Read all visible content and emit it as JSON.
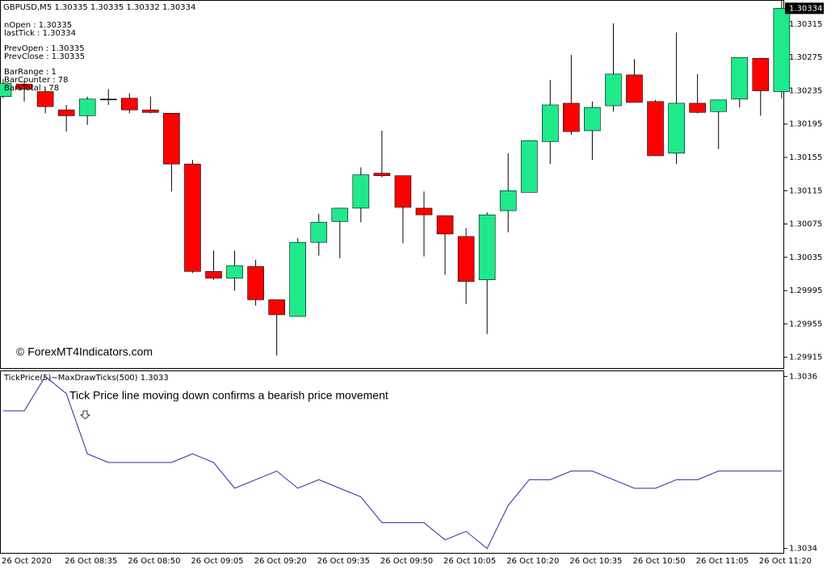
{
  "chart_data": [
    {
      "type": "candlestick",
      "title": "GBPUSD,M5  1.30335 1.30335 1.30332 1.30334",
      "info_lines": [
        "nOpen : 1.30335",
        "lastTick : 1.30334",
        "PrevOpen : 1.30335",
        "PrevClose : 1.30335",
        "BarRange : 1",
        "BarCounter : 78",
        "BarsTotal : 78"
      ],
      "watermark": "© ForexMT4Indicators.com",
      "current_price": 1.30334,
      "up_color": "#1eea8c",
      "down_color": "#ff0000",
      "categories": [
        "26 Oct 2020",
        null,
        null,
        "26 Oct 08:35",
        null,
        null,
        "26 Oct 08:50",
        null,
        null,
        "26 Oct 09:05",
        null,
        null,
        "26 Oct 09:20",
        null,
        null,
        "26 Oct 09:35",
        null,
        null,
        "26 Oct 09:50",
        null,
        null,
        "26 Oct 10:05",
        null,
        null,
        "26 Oct 10:20",
        null,
        null,
        "26 Oct 10:35",
        null,
        null,
        "26 Oct 10:50",
        null,
        null,
        "26 Oct 11:05",
        null,
        null,
        "26 Oct 11:20",
        null
      ],
      "open": [
        1.30228,
        1.30243,
        1.30234,
        1.30212,
        1.30205,
        1.30225,
        1.30226,
        1.30212,
        1.30208,
        1.30147,
        1.30018,
        1.3001,
        1.30024,
        1.29984,
        1.29964,
        1.30053,
        1.30078,
        1.30094,
        1.30136,
        1.30133,
        1.30094,
        1.30085,
        1.3006,
        1.30008,
        1.30091,
        1.30113,
        1.30174,
        1.3022,
        1.30187,
        1.30217,
        1.30254,
        1.30222,
        1.3016,
        1.3022,
        1.3021,
        1.30225,
        1.30274,
        1.30234
      ],
      "high": [
        1.30249,
        1.30247,
        1.30239,
        1.30218,
        1.30228,
        1.30237,
        1.30232,
        1.30228,
        1.30208,
        1.30152,
        1.30043,
        1.30043,
        1.30032,
        1.29984,
        1.30058,
        1.30087,
        1.30094,
        1.30143,
        1.30187,
        1.30133,
        1.30114,
        1.30085,
        1.3007,
        1.30089,
        1.3016,
        1.30175,
        1.30248,
        1.30278,
        1.30222,
        1.30316,
        1.30273,
        1.30224,
        1.30305,
        1.30255,
        1.30224,
        1.30275,
        1.30274,
        1.30344
      ],
      "low": [
        1.30226,
        1.30222,
        1.30208,
        1.30186,
        1.30194,
        1.30218,
        1.30208,
        1.30208,
        1.30114,
        1.30016,
        1.30008,
        1.29995,
        1.29977,
        1.29917,
        1.29964,
        1.30037,
        1.30034,
        1.30077,
        1.30131,
        1.30052,
        1.30036,
        1.30014,
        1.29979,
        1.29943,
        1.30065,
        1.30113,
        1.30147,
        1.30182,
        1.30152,
        1.3021,
        1.30221,
        1.30157,
        1.30147,
        1.30208,
        1.30165,
        1.30215,
        1.30205,
        1.30226
      ],
      "close": [
        1.30244,
        1.30237,
        1.30216,
        1.30205,
        1.30225,
        1.30225,
        1.30212,
        1.30209,
        1.30147,
        1.30018,
        1.3001,
        1.30025,
        1.29984,
        1.29966,
        1.30053,
        1.30077,
        1.30094,
        1.30134,
        1.30133,
        1.30095,
        1.30086,
        1.30063,
        1.30006,
        1.30086,
        1.30115,
        1.30175,
        1.30218,
        1.30186,
        1.30215,
        1.30255,
        1.30221,
        1.30157,
        1.3022,
        1.30209,
        1.30224,
        1.30275,
        1.30235,
        1.30334
      ],
      "ylim": [
        1.29902,
        1.30344
      ],
      "yticks": [
        1.30315,
        1.30275,
        1.30235,
        1.30195,
        1.30155,
        1.30115,
        1.30075,
        1.30035,
        1.29995,
        1.29955,
        1.29915
      ]
    },
    {
      "type": "line",
      "title": "TickPrice(5)~MaxDrawTicks(500) 1.3033",
      "annotation": "Tick Price line moving down confirms a bearish price movement",
      "color": "#2b2b9c",
      "values": [
        1.30356,
        1.30356,
        1.3036,
        1.30358,
        1.30351,
        1.3035,
        1.3035,
        1.3035,
        1.3035,
        1.30351,
        1.3035,
        1.30347,
        1.30348,
        1.30349,
        1.30347,
        1.30348,
        1.30347,
        1.30346,
        1.30343,
        1.30343,
        1.30343,
        1.30341,
        1.30342,
        1.3034,
        1.30345,
        1.30348,
        1.30348,
        1.30349,
        1.30349,
        1.30348,
        1.30347,
        1.30347,
        1.30348,
        1.30348,
        1.30349,
        1.30349,
        1.30349,
        1.30349
      ],
      "ylim": [
        1.303394,
        1.303606
      ],
      "yticks": [
        1.3036,
        1.3034
      ]
    }
  ]
}
